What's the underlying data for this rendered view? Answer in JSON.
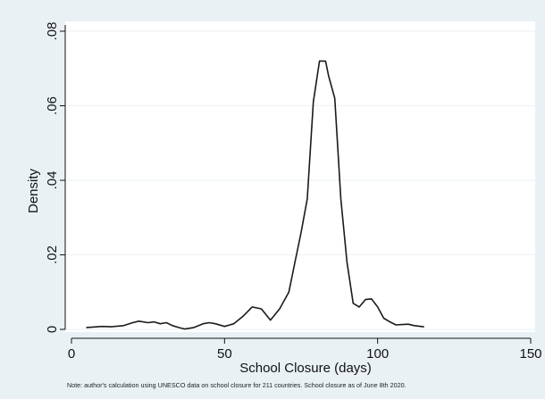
{
  "chart_data": {
    "type": "line",
    "title": "",
    "xlabel": "School Closure (days)",
    "ylabel": "Density",
    "xlim": [
      0,
      150
    ],
    "ylim": [
      0,
      0.08
    ],
    "x_ticks": [
      0,
      50,
      100,
      150
    ],
    "x_tick_labels": [
      "0",
      "50",
      "100",
      "150"
    ],
    "y_ticks": [
      0,
      0.02,
      0.04,
      0.06,
      0.08
    ],
    "y_tick_labels": [
      "0",
      ".02",
      ".04",
      ".06",
      ".08"
    ],
    "grid": "horizontal",
    "legend": "none",
    "line_color": "#1a1a1a",
    "series": [
      {
        "x": [
          5,
          10,
          13,
          17,
          20,
          22,
          25,
          27,
          29,
          31,
          33,
          35,
          37,
          40,
          43,
          45,
          47,
          50,
          53,
          56,
          59,
          62,
          65,
          68,
          71,
          73,
          75,
          77,
          79,
          81,
          83,
          84,
          86,
          88,
          90,
          92,
          94,
          96,
          98,
          100,
          102,
          104,
          106,
          108,
          110,
          112,
          115
        ],
        "y": [
          0.0005,
          0.0008,
          0.0007,
          0.001,
          0.0018,
          0.0022,
          0.0018,
          0.002,
          0.0015,
          0.0018,
          0.001,
          0.0005,
          0.0001,
          0.0005,
          0.0015,
          0.0018,
          0.0015,
          0.0008,
          0.0015,
          0.0035,
          0.006,
          0.0055,
          0.0025,
          0.0055,
          0.01,
          0.018,
          0.026,
          0.035,
          0.061,
          0.072,
          0.072,
          0.068,
          0.062,
          0.035,
          0.018,
          0.007,
          0.006,
          0.008,
          0.0082,
          0.006,
          0.003,
          0.002,
          0.0012,
          0.0013,
          0.0014,
          0.001,
          0.0007
        ]
      }
    ]
  },
  "note": "Note: author's calculation using UNESCO data on school closure for 211 countries. School closure as of June 8th 2020."
}
